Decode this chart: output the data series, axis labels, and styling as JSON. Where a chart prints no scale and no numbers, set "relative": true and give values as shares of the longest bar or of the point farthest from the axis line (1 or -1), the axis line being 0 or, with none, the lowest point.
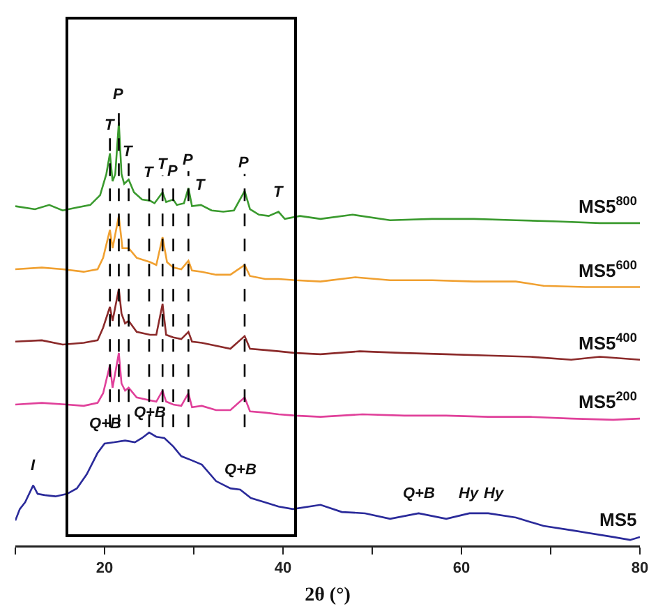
{
  "chart_data": {
    "type": "line",
    "relative": true,
    "xlabel": "2θ (°)",
    "xlim": [
      10,
      80
    ],
    "xticks": [
      {
        "value": 10,
        "label": null
      },
      20,
      {
        "value": 30,
        "label": null
      },
      40,
      {
        "value": 50,
        "label": null
      },
      60,
      {
        "value": 70,
        "label": null
      },
      80
    ],
    "grid": false,
    "legend": false,
    "line_style": "solid",
    "marker": "none",
    "tick_labels": "x",
    "series": [
      {
        "name": "MS5$^{800}$",
        "color": "#3a9a2e",
        "x": [
          10,
          12.2,
          13.8,
          15.3,
          16.9,
          18.4,
          19.5,
          20.2,
          20.6,
          20.9,
          21.2,
          21.6,
          21.9,
          22.2,
          22.7,
          23.3,
          24.2,
          25.1,
          25.6,
          26.5,
          26.9,
          27.7,
          28.1,
          28.9,
          29.4,
          29.8,
          30.8,
          32.0,
          33.3,
          34.5,
          35.7,
          36.3,
          37.3,
          38.4,
          39.5,
          40.2,
          41.9,
          44.2,
          47.8,
          52.0,
          56.7,
          61.4,
          66.1,
          70.8,
          75.5,
          80
        ],
        "values": [
          0.802,
          0.795,
          0.805,
          0.792,
          0.799,
          0.805,
          0.828,
          0.878,
          0.927,
          0.861,
          0.878,
          1.0,
          0.878,
          0.855,
          0.865,
          0.835,
          0.818,
          0.815,
          0.809,
          0.835,
          0.812,
          0.818,
          0.805,
          0.809,
          0.845,
          0.802,
          0.805,
          0.792,
          0.789,
          0.792,
          0.838,
          0.795,
          0.782,
          0.779,
          0.789,
          0.772,
          0.779,
          0.772,
          0.782,
          0.769,
          0.772,
          0.772,
          0.769,
          0.766,
          0.762,
          0.762
        ]
      },
      {
        "name": "MS5$^{600}$",
        "color": "#f0a030",
        "x": [
          10,
          12.97,
          15.31,
          17.66,
          19.22,
          19.84,
          20.6,
          20.9,
          21.6,
          22.0,
          22.7,
          23.6,
          25.1,
          25.8,
          26.5,
          27.0,
          27.7,
          28.6,
          29.4,
          29.8,
          30.9,
          32.5,
          34.1,
          35.7,
          36.3,
          38.0,
          39.5,
          41.4,
          44.2,
          48.1,
          52.0,
          56.7,
          61.4,
          66.1,
          69.2,
          73.9,
          80
        ],
        "values": [
          0.653,
          0.657,
          0.653,
          0.647,
          0.653,
          0.68,
          0.746,
          0.703,
          0.779,
          0.703,
          0.703,
          0.68,
          0.67,
          0.663,
          0.729,
          0.67,
          0.657,
          0.653,
          0.673,
          0.65,
          0.647,
          0.64,
          0.64,
          0.663,
          0.637,
          0.63,
          0.63,
          0.627,
          0.624,
          0.634,
          0.627,
          0.627,
          0.624,
          0.624,
          0.614,
          0.611,
          0.611
        ]
      },
      {
        "name": "MS5$^{400}$",
        "color": "#8b2a2a",
        "x": [
          10,
          12.97,
          15.31,
          17.66,
          19.22,
          19.84,
          20.6,
          20.9,
          21.6,
          21.9,
          22.3,
          22.7,
          23.6,
          25.1,
          25.8,
          26.5,
          26.9,
          27.7,
          28.6,
          29.4,
          29.8,
          30.9,
          32.5,
          34.1,
          35.7,
          36.3,
          38.0,
          39.5,
          41.4,
          44.2,
          48.6,
          53.6,
          58.3,
          63.0,
          67.7,
          72.3,
          75.5,
          80
        ],
        "values": [
          0.482,
          0.485,
          0.475,
          0.479,
          0.485,
          0.515,
          0.564,
          0.531,
          0.607,
          0.548,
          0.525,
          0.531,
          0.505,
          0.498,
          0.498,
          0.571,
          0.498,
          0.492,
          0.488,
          0.505,
          0.482,
          0.479,
          0.472,
          0.465,
          0.495,
          0.465,
          0.462,
          0.459,
          0.455,
          0.452,
          0.459,
          0.455,
          0.452,
          0.449,
          0.446,
          0.439,
          0.446,
          0.439
        ]
      },
      {
        "name": "MS5$^{200}$",
        "color": "#e0409a",
        "x": [
          10,
          12.97,
          15.78,
          17.66,
          19.22,
          19.84,
          20.6,
          20.9,
          21.6,
          21.9,
          22.3,
          22.7,
          23.6,
          25.1,
          25.8,
          26.5,
          26.9,
          27.7,
          28.6,
          29.4,
          29.8,
          30.9,
          32.5,
          34.1,
          35.7,
          36.3,
          38.0,
          39.5,
          41.4,
          44.2,
          48.9,
          53.6,
          58.3,
          63.0,
          67.7,
          72.3,
          77.0,
          80
        ],
        "values": [
          0.333,
          0.337,
          0.333,
          0.33,
          0.337,
          0.36,
          0.426,
          0.373,
          0.455,
          0.383,
          0.366,
          0.373,
          0.35,
          0.343,
          0.34,
          0.366,
          0.34,
          0.333,
          0.33,
          0.36,
          0.327,
          0.33,
          0.32,
          0.32,
          0.35,
          0.317,
          0.314,
          0.31,
          0.307,
          0.304,
          0.31,
          0.307,
          0.307,
          0.304,
          0.304,
          0.3,
          0.297,
          0.3
        ]
      },
      {
        "name": "MS5",
        "color": "#2a2a9a",
        "x": [
          10,
          10.5,
          11.1,
          12.0,
          12.5,
          13.3,
          14.5,
          15.8,
          16.9,
          18.0,
          19.2,
          20.0,
          21.1,
          22.3,
          23.4,
          24.2,
          25.0,
          25.8,
          26.7,
          27.7,
          28.6,
          29.8,
          30.9,
          32.5,
          34.1,
          35.2,
          36.4,
          38.0,
          39.5,
          41.1,
          44.2,
          46.6,
          49.2,
          52.0,
          55.2,
          58.3,
          60.9,
          63.0,
          66.1,
          69.2,
          72.3,
          77.0,
          78.9,
          80
        ],
        "values": [
          0.059,
          0.086,
          0.102,
          0.142,
          0.122,
          0.119,
          0.116,
          0.122,
          0.135,
          0.168,
          0.218,
          0.241,
          0.244,
          0.248,
          0.244,
          0.254,
          0.267,
          0.257,
          0.254,
          0.234,
          0.211,
          0.201,
          0.191,
          0.152,
          0.135,
          0.132,
          0.112,
          0.102,
          0.092,
          0.086,
          0.096,
          0.079,
          0.076,
          0.063,
          0.076,
          0.063,
          0.076,
          0.076,
          0.066,
          0.046,
          0.036,
          0.02,
          0.013,
          0.02
        ]
      }
    ],
    "ref_lines": [
      {
        "axis": "x",
        "value": 20.6,
        "label": "T",
        "line_style": "dashed",
        "color": "#000000"
      },
      {
        "axis": "x",
        "value": 21.6,
        "label": "P",
        "line_style": "dashed",
        "color": "#000000"
      },
      {
        "axis": "x",
        "value": 22.7,
        "label": "T",
        "line_style": "dashed",
        "color": "#000000"
      },
      {
        "axis": "x",
        "value": 25.0,
        "label": "T",
        "line_style": "dashed",
        "color": "#000000"
      },
      {
        "axis": "x",
        "value": 26.5,
        "label": "T",
        "line_style": "dashed",
        "color": "#000000"
      },
      {
        "axis": "x",
        "value": 27.7,
        "label": "P",
        "line_style": "dashed",
        "color": "#000000"
      },
      {
        "axis": "x",
        "value": 29.4,
        "label": "P",
        "line_style": "dashed",
        "color": "#000000"
      },
      {
        "axis": "x",
        "value": 35.7,
        "label": "P",
        "line_style": "dashed",
        "color": "#000000"
      }
    ],
    "annotations": [
      {
        "text": "T",
        "x": 30.8,
        "y": 0.805
      },
      {
        "text": "T",
        "x": 39.5,
        "y": 0.789
      },
      {
        "text": "I",
        "x": 12.0,
        "y": 0.142
      },
      {
        "text": "Q+B",
        "x": 20.0,
        "y": 0.241
      },
      {
        "text": "Q+B",
        "x": 25.0,
        "y": 0.267
      },
      {
        "text": "Q+B",
        "x": 35.2,
        "y": 0.132
      },
      {
        "text": "Q+B",
        "x": 55.2,
        "y": 0.076
      },
      {
        "text": "Hy",
        "x": 60.9,
        "y": 0.076
      },
      {
        "text": "Hy",
        "x": 63.6,
        "y": 0.076
      }
    ]
  }
}
